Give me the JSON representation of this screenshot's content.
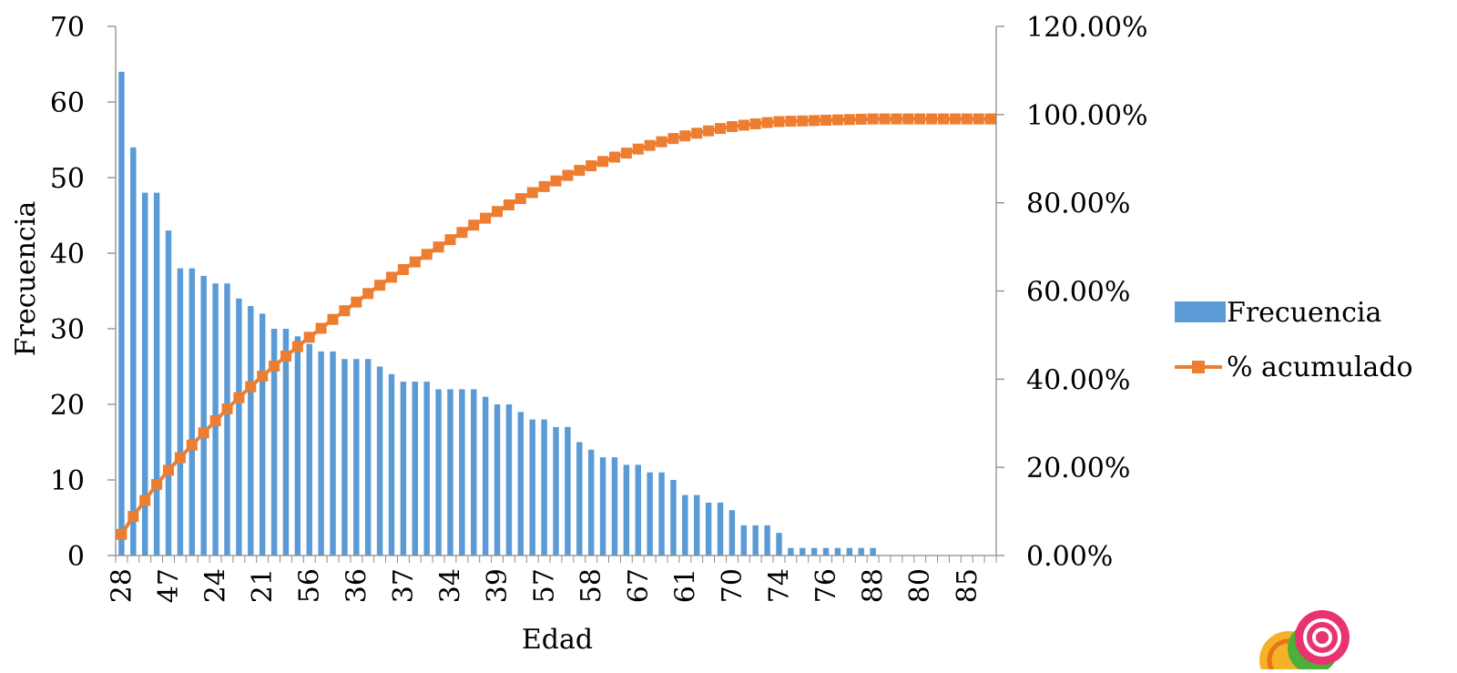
{
  "chart_data": {
    "type": "bar",
    "title": "",
    "xlabel": "Edad",
    "ylabel": "Frecuencia",
    "y2label": "",
    "ylim": [
      0,
      70
    ],
    "y2lim": [
      0,
      1.2
    ],
    "yticks": [
      "0",
      "10",
      "20",
      "30",
      "40",
      "50",
      "60",
      "70"
    ],
    "y2ticks": [
      "0.00%",
      "20.00%",
      "40.00%",
      "60.00%",
      "80.00%",
      "100.00%",
      "120.00%"
    ],
    "xtick_labels_shown": [
      "28",
      "47",
      "24",
      "21",
      "56",
      "36",
      "37",
      "34",
      "39",
      "57",
      "58",
      "67",
      "61",
      "70",
      "74",
      "76",
      "88",
      "80",
      "85"
    ],
    "legend_position": "right",
    "grid": false,
    "colors": {
      "bar": "#5B9BD5",
      "line": "#ED7D31",
      "axis": "#8C8C8C"
    },
    "series": [
      {
        "name": "Frecuencia",
        "kind": "bar",
        "axis": "left",
        "values": [
          64,
          54,
          48,
          48,
          43,
          38,
          38,
          37,
          36,
          36,
          34,
          33,
          32,
          30,
          30,
          29,
          28,
          27,
          27,
          26,
          26,
          26,
          25,
          24,
          23,
          23,
          23,
          22,
          22,
          22,
          22,
          21,
          20,
          20,
          19,
          18,
          18,
          17,
          17,
          15,
          14,
          13,
          13,
          12,
          12,
          11,
          11,
          10,
          8,
          8,
          7,
          7,
          6,
          4,
          4,
          4,
          3,
          1,
          1,
          1,
          1,
          1,
          1,
          1,
          1,
          0,
          0,
          0,
          0,
          0,
          0,
          0,
          0,
          0,
          0
        ]
      },
      {
        "name": "% acumulado",
        "kind": "line",
        "axis": "right",
        "marker": "square",
        "values": [
          0.0482,
          0.0888,
          0.1249,
          0.161,
          0.1933,
          0.2219,
          0.2505,
          0.2783,
          0.3054,
          0.3325,
          0.3581,
          0.3829,
          0.407,
          0.4296,
          0.4521,
          0.4739,
          0.495,
          0.5153,
          0.5356,
          0.5552,
          0.5747,
          0.5943,
          0.6131,
          0.6312,
          0.6485,
          0.6658,
          0.6831,
          0.6997,
          0.7162,
          0.7328,
          0.7493,
          0.7651,
          0.7802,
          0.7952,
          0.8095,
          0.8231,
          0.8366,
          0.8494,
          0.8622,
          0.8735,
          0.884,
          0.8938,
          0.9036,
          0.9127,
          0.9217,
          0.93,
          0.9383,
          0.9458,
          0.9518,
          0.9578,
          0.9631,
          0.9684,
          0.9729,
          0.9759,
          0.9789,
          0.9819,
          0.9842,
          0.9849,
          0.9857,
          0.9865,
          0.9872,
          0.988,
          0.9887,
          0.9895,
          0.9902,
          0.9902,
          0.9902,
          0.9902,
          0.9902,
          0.9902,
          0.9902,
          0.9902,
          0.9902,
          0.9902,
          0.9902
        ]
      }
    ]
  }
}
